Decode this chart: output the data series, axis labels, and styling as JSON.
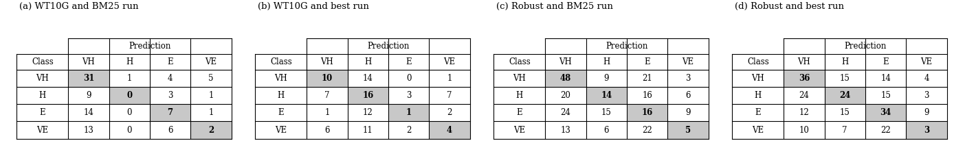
{
  "tables": [
    {
      "title": "(a) WT10G and BM25 run",
      "matrix": [
        [
          31,
          1,
          4,
          5
        ],
        [
          9,
          0,
          3,
          1
        ],
        [
          14,
          0,
          7,
          1
        ],
        [
          13,
          0,
          6,
          2
        ]
      ]
    },
    {
      "title": "(b) WT10G and best run",
      "matrix": [
        [
          10,
          14,
          0,
          1
        ],
        [
          7,
          16,
          3,
          7
        ],
        [
          1,
          12,
          1,
          2
        ],
        [
          6,
          11,
          2,
          4
        ]
      ]
    },
    {
      "title": "(c) Robust and BM25 run",
      "matrix": [
        [
          48,
          9,
          21,
          3
        ],
        [
          20,
          14,
          16,
          6
        ],
        [
          24,
          15,
          16,
          9
        ],
        [
          13,
          6,
          22,
          5
        ]
      ]
    },
    {
      "title": "(d) Robust and best run",
      "matrix": [
        [
          36,
          15,
          14,
          4
        ],
        [
          24,
          24,
          15,
          3
        ],
        [
          12,
          15,
          34,
          9
        ],
        [
          10,
          7,
          22,
          3
        ]
      ]
    }
  ],
  "row_labels": [
    "VH",
    "H",
    "E",
    "VE"
  ],
  "col_labels": [
    "VH",
    "H",
    "E",
    "VE"
  ],
  "diag_color": "#c8c8c8",
  "prediction_label": "Prediction",
  "class_label": "Class",
  "title_fontsize": 9.5,
  "cell_fontsize": 8.5,
  "fig_width": 13.88,
  "fig_height": 2.09
}
